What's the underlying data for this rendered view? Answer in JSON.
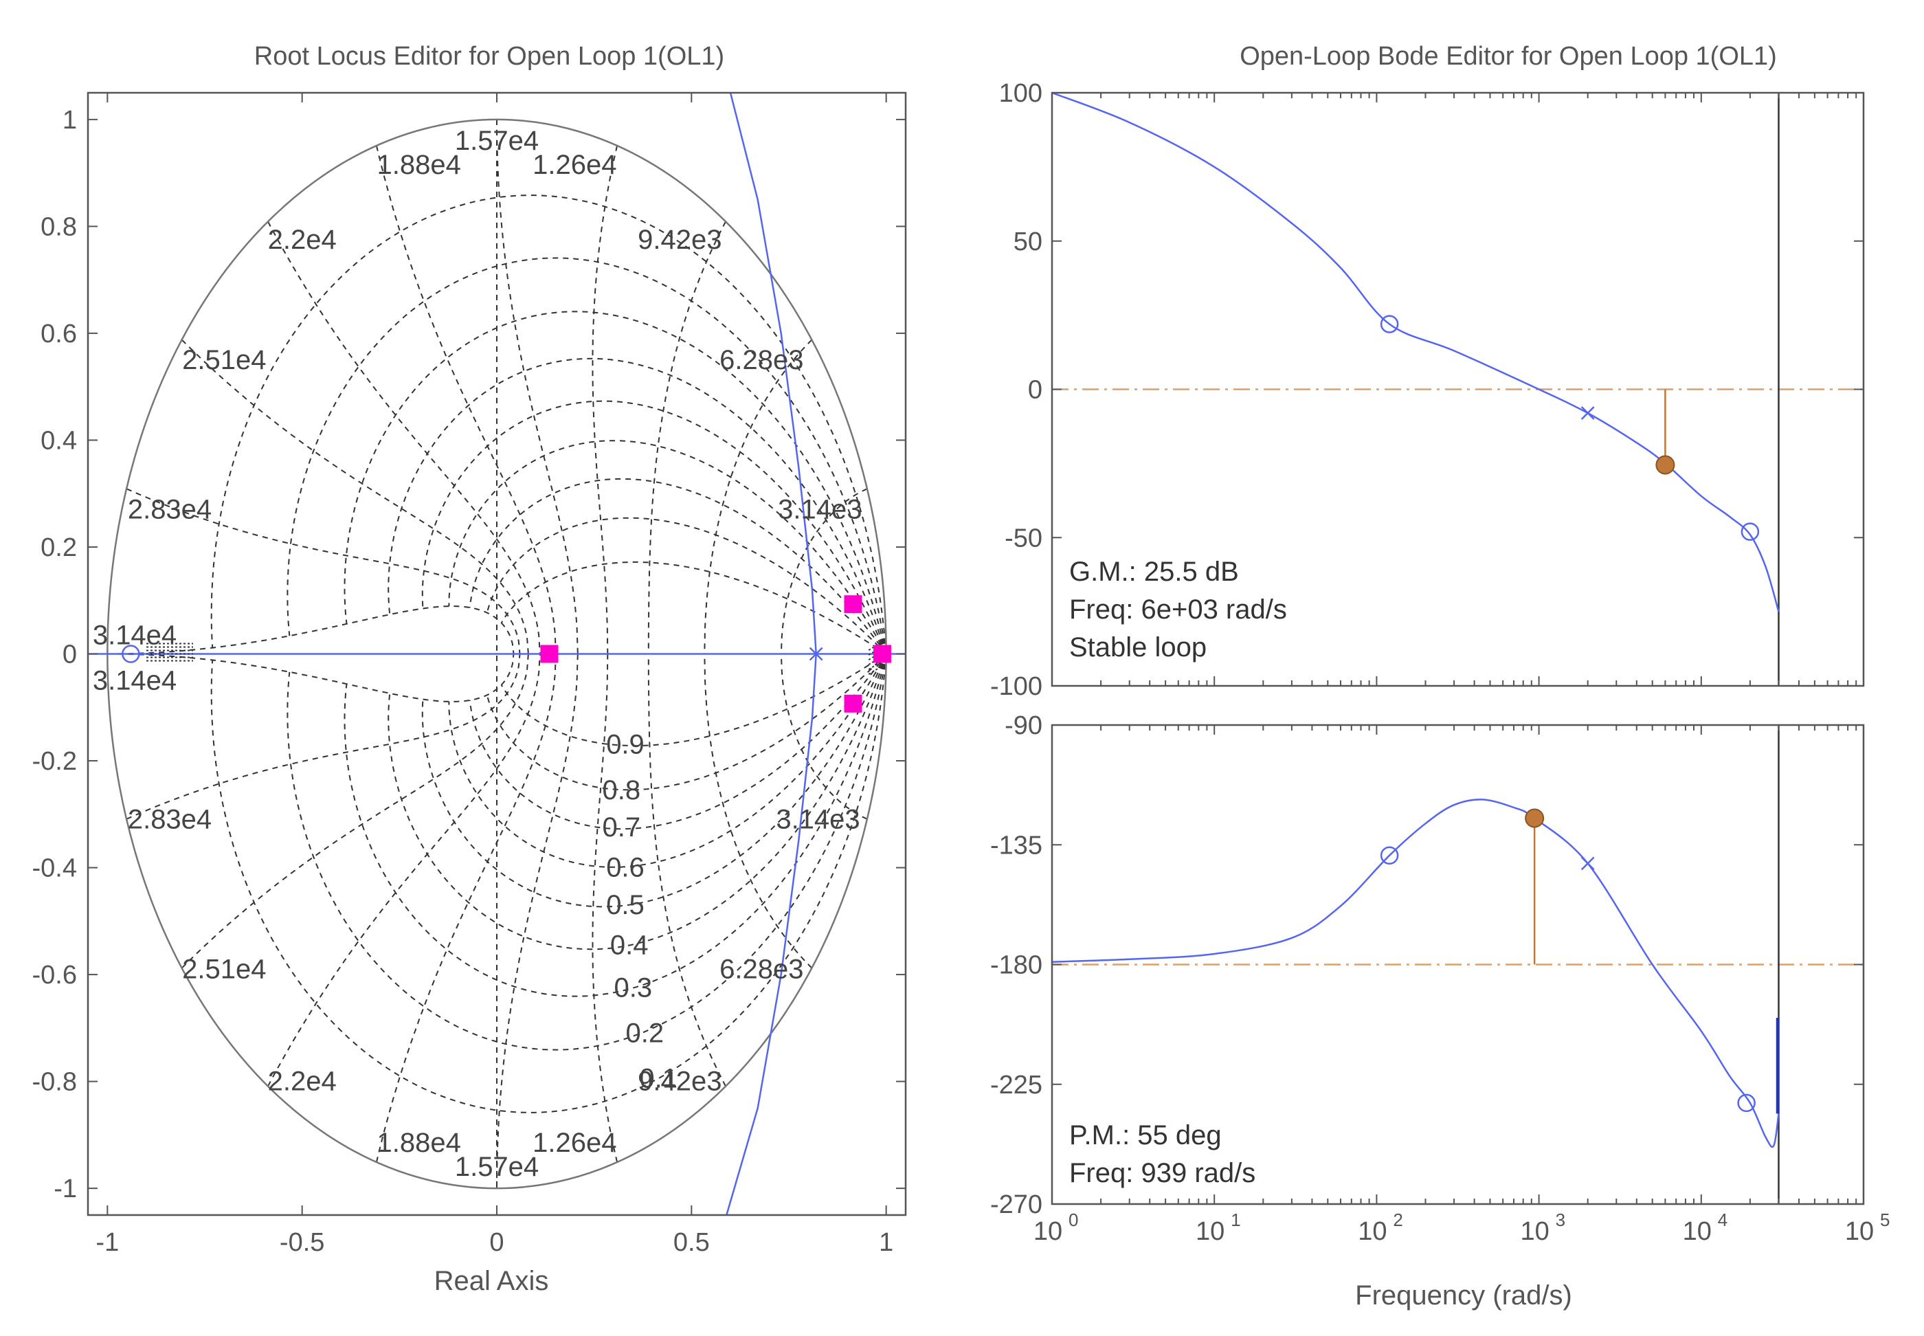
{
  "colors": {
    "locus": "#5566ee",
    "closed_loop_poles": "#ff00cc",
    "margin_marker": "#c0783a",
    "reference_line": "#d9a070",
    "axis": "#555555"
  },
  "chart_data": [
    {
      "type": "root_locus",
      "title": "Root Locus Editor for Open Loop 1(OL1)",
      "xlabel": "Real Axis",
      "ylabel": "",
      "xlim": [
        -1.05,
        1.05
      ],
      "ylim": [
        -1.05,
        1.05
      ],
      "xticks": [
        -1,
        -0.5,
        0,
        0.5,
        1
      ],
      "xtick_labels": [
        "-1",
        "-0.5",
        "0",
        "0.5",
        "1"
      ],
      "yticks": [
        1,
        0.8,
        0.6,
        0.4,
        0.2,
        0,
        -0.2,
        -0.4,
        -0.6,
        -0.8,
        -1
      ],
      "ytick_labels": [
        "1",
        "0.8",
        "0.6",
        "0.4",
        "0.2",
        "0",
        "-0.2",
        "-0.4",
        "-0.6",
        "-0.8",
        "-1"
      ],
      "damping_grid": [
        0.1,
        0.2,
        0.3,
        0.4,
        0.5,
        0.6,
        0.7,
        0.8,
        0.9
      ],
      "damping_labels": [
        "0.9",
        "0.8",
        "0.7",
        "0.6",
        "0.5",
        "0.4",
        "0.3",
        "0.2",
        "0.1"
      ],
      "damping_label_points": [
        {
          "text": "0.9",
          "re": 0.33,
          "im": -0.17
        },
        {
          "text": "0.8",
          "re": 0.32,
          "im": -0.255
        },
        {
          "text": "0.7",
          "re": 0.32,
          "im": -0.325
        },
        {
          "text": "0.6",
          "re": 0.33,
          "im": -0.4
        },
        {
          "text": "0.5",
          "re": 0.33,
          "im": -0.47
        },
        {
          "text": "0.4",
          "re": 0.34,
          "im": -0.545
        },
        {
          "text": "0.3",
          "re": 0.35,
          "im": -0.625
        },
        {
          "text": "0.2",
          "re": 0.38,
          "im": -0.71
        },
        {
          "text": "0.1",
          "re": 0.415,
          "im": -0.795
        }
      ],
      "natural_freq_labels": [
        {
          "text": "1.57e4",
          "re": 0.0,
          "im": 0.96
        },
        {
          "text": "1.88e4",
          "re": -0.2,
          "im": 0.915
        },
        {
          "text": "1.26e4",
          "re": 0.2,
          "im": 0.915
        },
        {
          "text": "2.2e4",
          "re": -0.5,
          "im": 0.775
        },
        {
          "text": "9.42e3",
          "re": 0.47,
          "im": 0.775
        },
        {
          "text": "2.51e4",
          "re": -0.7,
          "im": 0.55
        },
        {
          "text": "6.28e3",
          "re": 0.68,
          "im": 0.55
        },
        {
          "text": "2.83e4",
          "re": -0.84,
          "im": 0.27
        },
        {
          "text": "3.14e3",
          "re": 0.83,
          "im": 0.27
        },
        {
          "text": "3.14e4",
          "re": -0.93,
          "im": 0.035
        },
        {
          "text": "3.14e4",
          "re": -0.93,
          "im": -0.05
        },
        {
          "text": "2.83e4",
          "re": -0.84,
          "im": -0.31
        },
        {
          "text": "3.14e3",
          "re": 0.825,
          "im": -0.31
        },
        {
          "text": "2.51e4",
          "re": -0.7,
          "im": -0.59
        },
        {
          "text": "6.28e3",
          "re": 0.68,
          "im": -0.59
        },
        {
          "text": "2.2e4",
          "re": -0.5,
          "im": -0.8
        },
        {
          "text": "9.42e3",
          "re": 0.47,
          "im": -0.8
        },
        {
          "text": "1.88e4",
          "re": -0.2,
          "im": -0.915
        },
        {
          "text": "1.26e4",
          "re": 0.2,
          "im": -0.915
        },
        {
          "text": "1.57e4",
          "re": 0.0,
          "im": -0.96
        }
      ],
      "open_loop_zeros": [
        {
          "re": -0.94,
          "im": 0.0
        }
      ],
      "open_loop_poles": [
        {
          "re": 0.82,
          "im": 0.0
        }
      ],
      "closed_loop_poles": [
        {
          "re": 0.135,
          "im": 0.0
        },
        {
          "re": 0.915,
          "im": 0.093
        },
        {
          "re": 0.915,
          "im": -0.093
        },
        {
          "re": 0.99,
          "im": 0.0
        }
      ],
      "locus_branch": [
        {
          "re": 0.6,
          "im": 1.05
        },
        {
          "re": 0.67,
          "im": 0.85
        },
        {
          "re": 0.73,
          "im": 0.6
        },
        {
          "re": 0.775,
          "im": 0.35
        },
        {
          "re": 0.81,
          "im": 0.12
        },
        {
          "re": 0.82,
          "im": 0.0
        },
        {
          "re": 0.81,
          "im": -0.12
        },
        {
          "re": 0.775,
          "im": -0.35
        },
        {
          "re": 0.73,
          "im": -0.6
        },
        {
          "re": 0.67,
          "im": -0.85
        },
        {
          "re": 0.59,
          "im": -1.05
        }
      ]
    },
    {
      "type": "line",
      "title": "Open-Loop Bode Editor for Open Loop 1(OL1)",
      "panel": "magnitude",
      "xscale": "log",
      "xlim": [
        1,
        100000
      ],
      "ylim": [
        -100,
        100
      ],
      "yticks": [
        100,
        50,
        0,
        -50,
        -100
      ],
      "ytick_labels": [
        "100",
        "50",
        "0",
        "-50",
        "-100"
      ],
      "reference_y": 0,
      "vertical_line_x": 30000,
      "series": [
        {
          "name": "magnitude (dB)",
          "x": [
            1,
            3,
            10,
            30,
            60,
            120,
            300,
            1000,
            2000,
            4000,
            6000,
            10000,
            15000,
            20000,
            25000,
            30000
          ],
          "y": [
            100,
            90,
            75,
            56,
            41,
            22,
            13,
            0,
            -8,
            -18,
            -25,
            -36,
            -43,
            -49,
            -60,
            -75
          ]
        }
      ],
      "markers": {
        "zeros": [
          {
            "x": 120,
            "y": 22
          },
          {
            "x": 20000,
            "y": -48
          }
        ],
        "poles": [
          {
            "x": 2000,
            "y": -8
          }
        ],
        "gain_margin_point": {
          "x": 6000,
          "y": -25.5
        }
      },
      "annotations": {
        "gm": "G.M.: 25.5 dB",
        "freq": "Freq: 6e+03 rad/s",
        "status": "Stable loop"
      }
    },
    {
      "type": "line",
      "panel": "phase",
      "xscale": "log",
      "xlabel": "Frequency (rad/s)",
      "xlim": [
        1,
        100000
      ],
      "ylim": [
        -270,
        -90
      ],
      "yticks": [
        -90,
        -135,
        -180,
        -225,
        -270
      ],
      "ytick_labels": [
        "-90",
        "-135",
        "-180",
        "-225",
        "-270"
      ],
      "xtick_labels": [
        {
          "base": "10",
          "exp": "0"
        },
        {
          "base": "10",
          "exp": "1"
        },
        {
          "base": "10",
          "exp": "2"
        },
        {
          "base": "10",
          "exp": "3"
        },
        {
          "base": "10",
          "exp": "4"
        },
        {
          "base": "10",
          "exp": "5"
        }
      ],
      "reference_y": -180,
      "vertical_line_x": 30000,
      "series": [
        {
          "name": "phase (deg)",
          "x": [
            1,
            3,
            10,
            30,
            60,
            120,
            200,
            300,
            450,
            700,
            939,
            2000,
            5000,
            10000,
            15000,
            20000,
            25000,
            28000,
            30000
          ],
          "y": [
            -179,
            -178,
            -176,
            -170,
            -158,
            -139,
            -127,
            -120,
            -118,
            -121,
            -125,
            -142,
            -180,
            -205,
            -222,
            -232,
            -245,
            -248,
            -236
          ]
        }
      ],
      "markers": {
        "zeros": [
          {
            "x": 120,
            "y": -139
          },
          {
            "x": 19000,
            "y": -232
          }
        ],
        "poles": [
          {
            "x": 2000,
            "y": -142
          }
        ],
        "phase_margin_point": {
          "x": 939,
          "y": -125
        }
      },
      "annotations": {
        "pm": "P.M.: 55 deg",
        "freq": "Freq: 939 rad/s"
      }
    }
  ]
}
